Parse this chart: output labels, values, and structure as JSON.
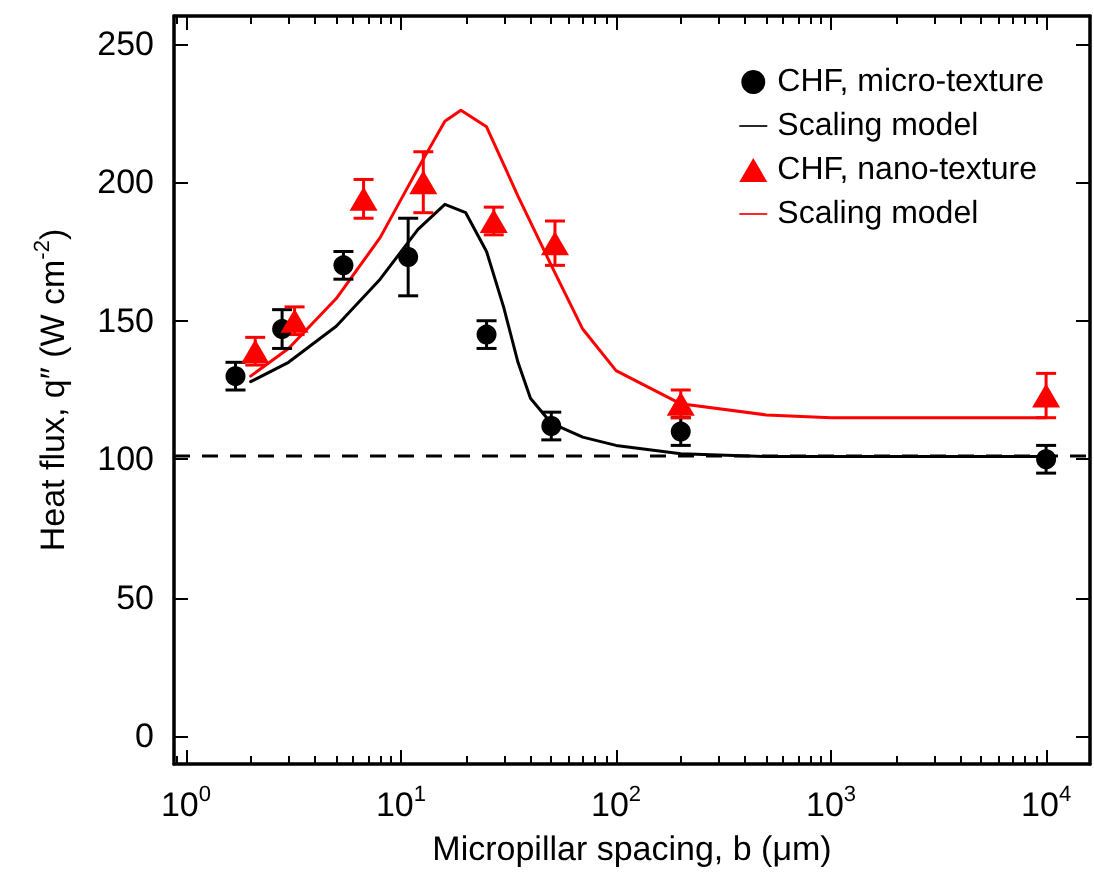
{
  "chart_data": {
    "type": "scatter",
    "xlabel": "Micropillar spacing, b (μm)",
    "ylabel": "Heat flux, q″ (W cm$^{-2}$)",
    "log": "x",
    "xlim": [
      0.88,
      16000
    ],
    "xticks": [
      {
        "value": 1,
        "label": "10$^{0}$"
      },
      {
        "value": 10,
        "label": "10$^{1}$"
      },
      {
        "value": 100,
        "label": "10$^{2}$"
      },
      {
        "value": 1000,
        "label": "10$^{3}$"
      },
      {
        "value": 10000,
        "label": "10$^{4}$"
      }
    ],
    "ylim": [
      -10,
      260
    ],
    "yticks": [
      0,
      50,
      100,
      150,
      200,
      250
    ],
    "grid": false,
    "legend": "top right",
    "series": [
      {
        "name": "CHF, micro-texture",
        "type": "scatter",
        "marker": "circle",
        "color": "#000000",
        "x": [
          1.7,
          2.8,
          5.4,
          10.8,
          25,
          50,
          200,
          10000
        ],
        "values": [
          130,
          147,
          170,
          173,
          145,
          112,
          110,
          100
        ],
        "errors": [
          5,
          7,
          5,
          14,
          5,
          5,
          5,
          5
        ]
      },
      {
        "name": "Scaling model",
        "type": "line",
        "marker": "none",
        "line_style": "solid",
        "color": "#000000",
        "x": [
          2,
          3,
          5,
          8,
          12,
          16,
          20,
          25,
          30,
          35,
          40,
          50,
          70,
          100,
          200,
          500,
          10000
        ],
        "values": [
          128,
          135,
          148,
          165,
          183,
          192,
          189,
          175,
          155,
          135,
          122,
          113,
          108,
          105,
          102,
          101,
          101
        ]
      },
      {
        "name": "CHF, nano-texture",
        "type": "scatter",
        "marker": "triangle",
        "color": "#ff0000",
        "x": [
          2.1,
          3.2,
          6.7,
          12.7,
          27,
          52,
          200,
          10000
        ],
        "values": [
          139,
          150,
          194,
          200,
          186,
          178,
          120,
          123
        ],
        "errors": [
          5,
          5,
          7,
          11,
          5,
          8,
          5,
          8
        ]
      },
      {
        "name": "Scaling model",
        "type": "line",
        "marker": "none",
        "line_style": "solid",
        "color": "#ff0000",
        "x": [
          2,
          3,
          5,
          8,
          12,
          16,
          19,
          25,
          35,
          50,
          70,
          100,
          200,
          500,
          1000,
          10000
        ],
        "values": [
          130,
          140,
          158,
          180,
          205,
          222,
          226,
          220,
          195,
          170,
          147,
          132,
          120,
          116,
          115,
          115
        ]
      }
    ],
    "ref_lines": [
      {
        "axis": "y",
        "value": 101,
        "label": null,
        "color": "#000000",
        "line_style": "dashed"
      }
    ]
  }
}
